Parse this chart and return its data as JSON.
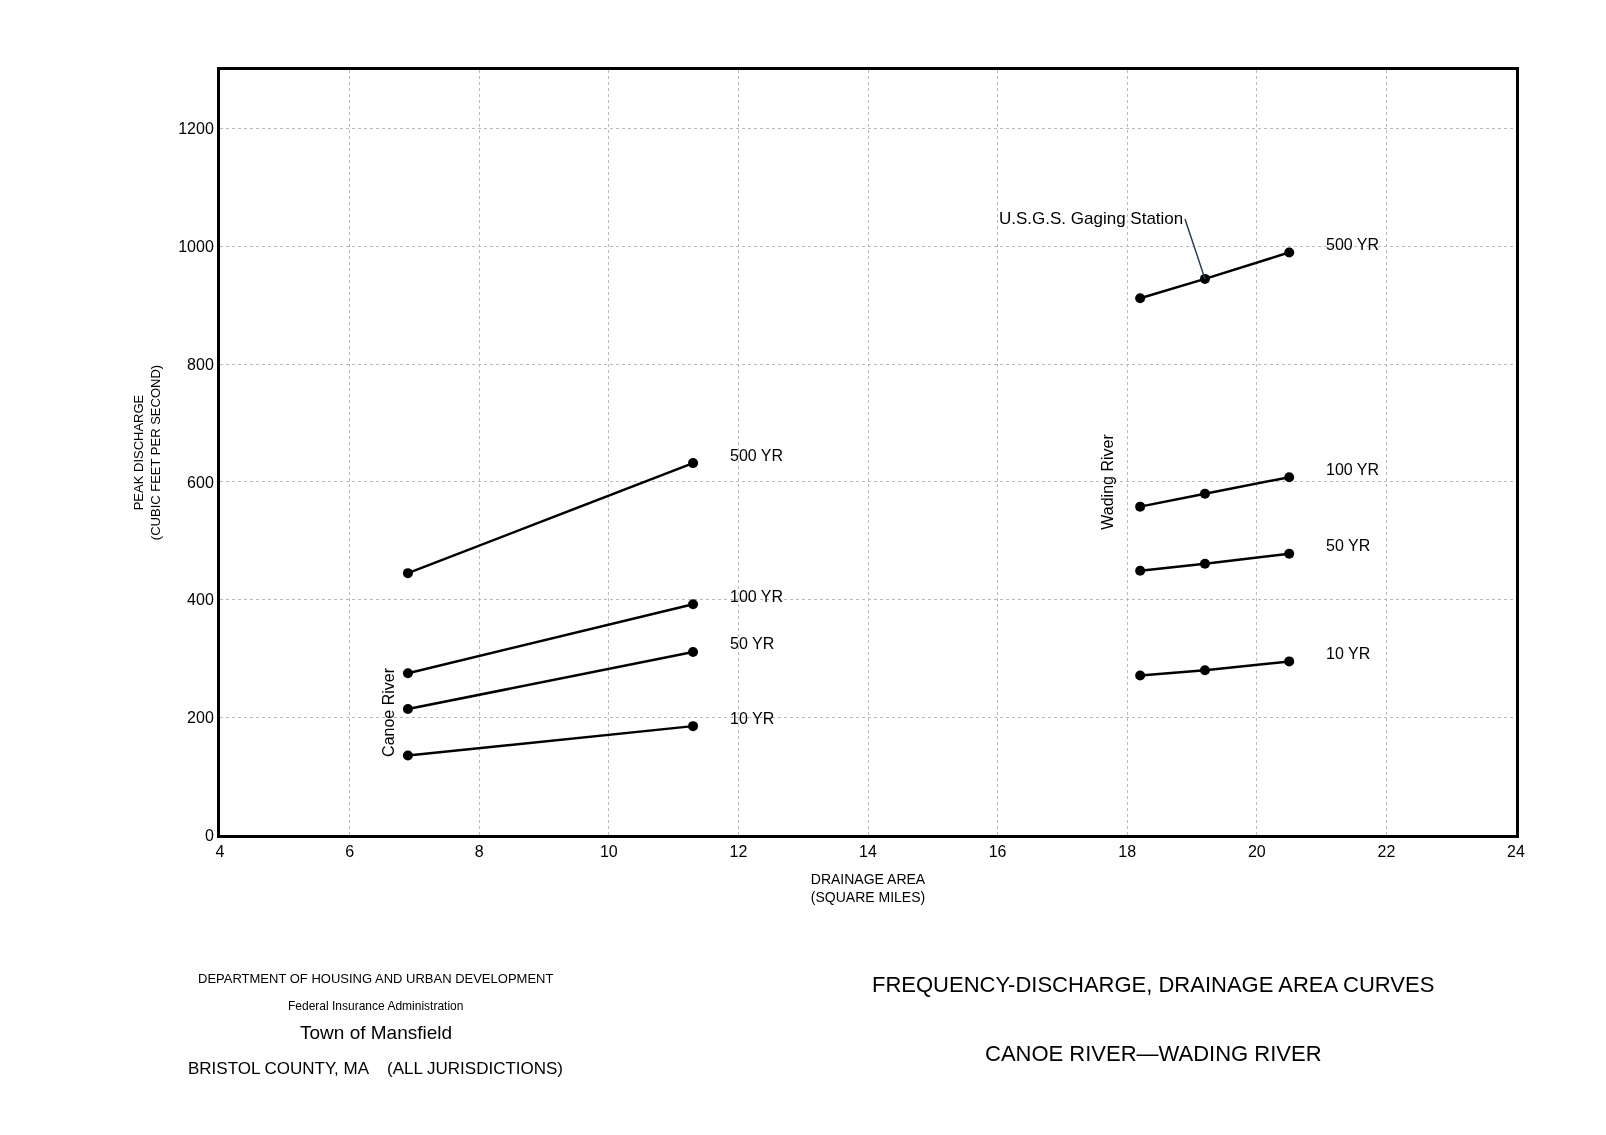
{
  "chart_data": {
    "type": "line",
    "title": "FREQUENCY-DISCHARGE, DRAINAGE AREA CURVES",
    "subtitle": "CANOE RIVER—WADING RIVER",
    "xlabel": "DRAINAGE AREA\n(SQUARE MILES)",
    "ylabel": "PEAK DISCHARGE\n(CUBIC FEET PER SECOND)",
    "xlim": [
      4,
      24
    ],
    "xticks": [
      4,
      6,
      8,
      10,
      12,
      14,
      16,
      18,
      20,
      22,
      24
    ],
    "ylim": [
      0,
      1300
    ],
    "yticks": [
      0,
      200,
      400,
      600,
      800,
      1000,
      1200
    ],
    "grid": true,
    "legend": false,
    "marker": "circle",
    "line_style": "solid",
    "series": [
      {
        "color": "#000000",
        "x": [
          6.9,
          11.3
        ],
        "values": [
          445,
          632
        ]
      },
      {
        "color": "#000000",
        "x": [
          6.9,
          11.3
        ],
        "values": [
          275,
          392
        ]
      },
      {
        "color": "#000000",
        "x": [
          6.9,
          11.3
        ],
        "values": [
          214,
          311
        ]
      },
      {
        "color": "#000000",
        "x": [
          6.9,
          11.3
        ],
        "values": [
          135,
          185
        ]
      },
      {
        "color": "#000000",
        "x": [
          18.2,
          19.2,
          20.5
        ],
        "values": [
          912,
          945,
          990
        ]
      },
      {
        "color": "#000000",
        "x": [
          18.2,
          19.2,
          20.5
        ],
        "values": [
          558,
          580,
          608
        ]
      },
      {
        "color": "#000000",
        "x": [
          18.2,
          19.2,
          20.5
        ],
        "values": [
          449,
          461,
          478
        ]
      },
      {
        "color": "#000000",
        "x": [
          18.2,
          19.2,
          20.5
        ],
        "values": [
          271,
          280,
          295
        ]
      }
    ],
    "annotations": [
      {
        "text": "500 YR",
        "x": 11.3,
        "y": 632
      },
      {
        "text": "100 YR",
        "x": 11.3,
        "y": 392
      },
      {
        "text": "50 YR",
        "x": 11.3,
        "y": 311
      },
      {
        "text": "10 YR",
        "x": 11.3,
        "y": 185
      },
      {
        "text": "500 YR",
        "x": 20.5,
        "y": 990
      },
      {
        "text": "100 YR",
        "x": 20.5,
        "y": 608
      },
      {
        "text": "50 YR",
        "x": 20.5,
        "y": 478
      },
      {
        "text": "10 YR",
        "x": 20.5,
        "y": 295
      },
      {
        "text": "U.S.G.S. Gaging Station",
        "x": 19.2,
        "y": 945
      },
      "Canoe River",
      "Wading River",
      "DEPARTMENT OF HOUSING AND URBAN DEVELOPMENT",
      "Federal Insurance Administration",
      "Town of Mansfield",
      "BRISTOL COUNTY, MA    (ALL JURISDICTIONS)"
    ]
  }
}
